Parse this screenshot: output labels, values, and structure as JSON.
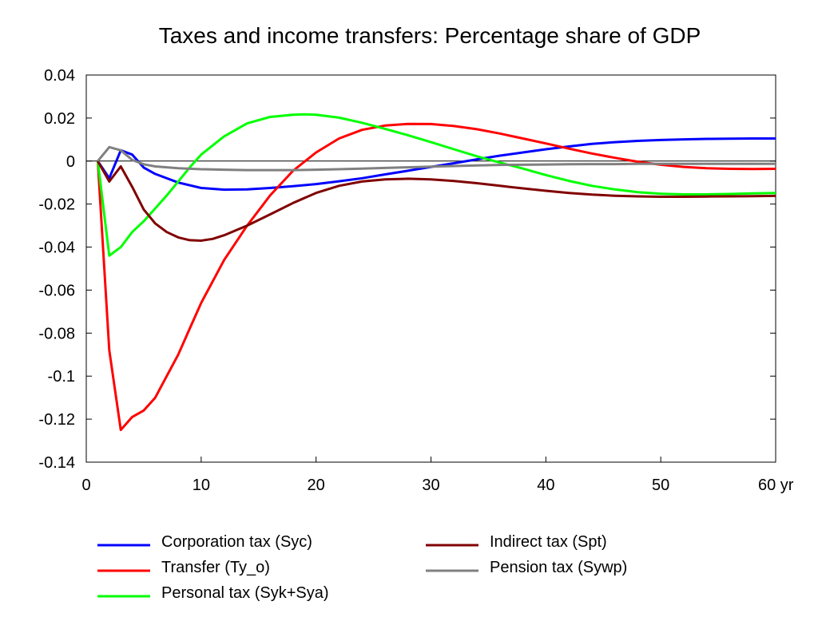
{
  "chart_data": {
    "type": "line",
    "title": "Taxes and income transfers: Percentage share of GDP",
    "xlabel": "",
    "ylabel": "",
    "x_unit": "yr",
    "xlim": [
      0,
      60
    ],
    "ylim": [
      -0.14,
      0.04
    ],
    "xticks": [
      0,
      10,
      20,
      30,
      40,
      50,
      60
    ],
    "xtick_labels": [
      "0",
      "10",
      "20",
      "30",
      "40",
      "50",
      "60 yr"
    ],
    "yticks": [
      0.04,
      0.02,
      0,
      -0.02,
      -0.04,
      -0.06,
      -0.08,
      -0.1,
      -0.12,
      -0.14
    ],
    "ytick_labels": [
      "0.04",
      "0.02",
      "0",
      "-0.02",
      "-0.04",
      "-0.06",
      "-0.08",
      "-0.1",
      "-0.12",
      "-0.14"
    ],
    "grid": false,
    "zero_line": true,
    "legend_position": "bottom",
    "series": [
      {
        "name": "Corporation tax (Syc)",
        "color": "#0000ff",
        "x": [
          1,
          2,
          3,
          4,
          5,
          6,
          8,
          10,
          12,
          14,
          16,
          18,
          20,
          22,
          24,
          26,
          28,
          30,
          32,
          34,
          36,
          38,
          40,
          42,
          44,
          46,
          48,
          50,
          52,
          54,
          56,
          58,
          60
        ],
        "y": [
          0,
          -0.008,
          0.005,
          0.003,
          -0.003,
          -0.006,
          -0.01,
          -0.0125,
          -0.0133,
          -0.0132,
          -0.0125,
          -0.0117,
          -0.0107,
          -0.0094,
          -0.008,
          -0.0062,
          -0.0045,
          -0.0027,
          -0.001,
          0.0008,
          0.0025,
          0.004,
          0.0055,
          0.0068,
          0.008,
          0.0088,
          0.0094,
          0.0098,
          0.0101,
          0.0103,
          0.0104,
          0.0105,
          0.0105
        ]
      },
      {
        "name": "Transfer (Ty_o)",
        "color": "#ff0000",
        "x": [
          1,
          2,
          3,
          4,
          5,
          6,
          7,
          8,
          9,
          10,
          12,
          14,
          16,
          18,
          20,
          22,
          24,
          26,
          28,
          30,
          32,
          34,
          36,
          38,
          40,
          42,
          44,
          46,
          48,
          50,
          52,
          54,
          56,
          58,
          60
        ],
        "y": [
          0,
          -0.088,
          -0.125,
          -0.119,
          -0.116,
          -0.11,
          -0.1,
          -0.09,
          -0.078,
          -0.066,
          -0.046,
          -0.03,
          -0.016,
          -0.0045,
          0.004,
          0.0105,
          0.0145,
          0.0165,
          0.0173,
          0.0172,
          0.0163,
          0.0148,
          0.0128,
          0.0105,
          0.0082,
          0.0058,
          0.0035,
          0.0015,
          -0.0003,
          -0.0017,
          -0.0027,
          -0.0033,
          -0.0036,
          -0.0037,
          -0.0036
        ]
      },
      {
        "name": "Personal tax (Syk+Sya)",
        "color": "#00ff00",
        "x": [
          1,
          2,
          3,
          4,
          5,
          6,
          7,
          8,
          9,
          10,
          12,
          14,
          16,
          18,
          19,
          20,
          22,
          24,
          26,
          28,
          30,
          32,
          34,
          36,
          38,
          40,
          42,
          44,
          46,
          48,
          50,
          52,
          54,
          56,
          58,
          60
        ],
        "y": [
          0,
          -0.044,
          -0.04,
          -0.033,
          -0.028,
          -0.022,
          -0.016,
          -0.0095,
          -0.003,
          0.003,
          0.0115,
          0.0175,
          0.0205,
          0.0215,
          0.0217,
          0.0215,
          0.0202,
          0.0178,
          0.015,
          0.012,
          0.0088,
          0.0055,
          0.0022,
          -0.0007,
          -0.0035,
          -0.0065,
          -0.0092,
          -0.0115,
          -0.0132,
          -0.0145,
          -0.0152,
          -0.0155,
          -0.0155,
          -0.0153,
          -0.015,
          -0.0148
        ]
      },
      {
        "name": "Indirect tax (Spt)",
        "color": "#800000",
        "x": [
          1,
          2,
          3,
          4,
          5,
          6,
          7,
          8,
          9,
          10,
          11,
          12,
          14,
          16,
          18,
          20,
          22,
          24,
          26,
          28,
          30,
          32,
          34,
          36,
          38,
          40,
          42,
          44,
          46,
          48,
          50,
          52,
          54,
          56,
          58,
          60
        ],
        "y": [
          0,
          -0.0095,
          -0.0025,
          -0.012,
          -0.0225,
          -0.029,
          -0.033,
          -0.0355,
          -0.0368,
          -0.037,
          -0.0362,
          -0.0345,
          -0.03,
          -0.0248,
          -0.0195,
          -0.0148,
          -0.0115,
          -0.0095,
          -0.0085,
          -0.0082,
          -0.0085,
          -0.0093,
          -0.0103,
          -0.0115,
          -0.0127,
          -0.0138,
          -0.0148,
          -0.0156,
          -0.0161,
          -0.0164,
          -0.0166,
          -0.0166,
          -0.0165,
          -0.0164,
          -0.0163,
          -0.0162
        ]
      },
      {
        "name": "Pension tax (Sywp)",
        "color": "#808080",
        "x": [
          1,
          2,
          3,
          4,
          5,
          6,
          8,
          10,
          12,
          14,
          16,
          18,
          20,
          22,
          24,
          26,
          28,
          30,
          32,
          34,
          36,
          38,
          40,
          42,
          44,
          46,
          48,
          50,
          52,
          54,
          56,
          58,
          60
        ],
        "y": [
          0,
          0.0065,
          0.005,
          0.0005,
          -0.0015,
          -0.0025,
          -0.0033,
          -0.0038,
          -0.004,
          -0.0042,
          -0.0042,
          -0.0042,
          -0.004,
          -0.0038,
          -0.0035,
          -0.0032,
          -0.0029,
          -0.0026,
          -0.0023,
          -0.002,
          -0.0018,
          -0.0017,
          -0.0016,
          -0.0015,
          -0.0014,
          -0.0014,
          -0.0013,
          -0.0013,
          -0.0013,
          -0.0013,
          -0.0013,
          -0.0013,
          -0.0013
        ]
      }
    ]
  }
}
